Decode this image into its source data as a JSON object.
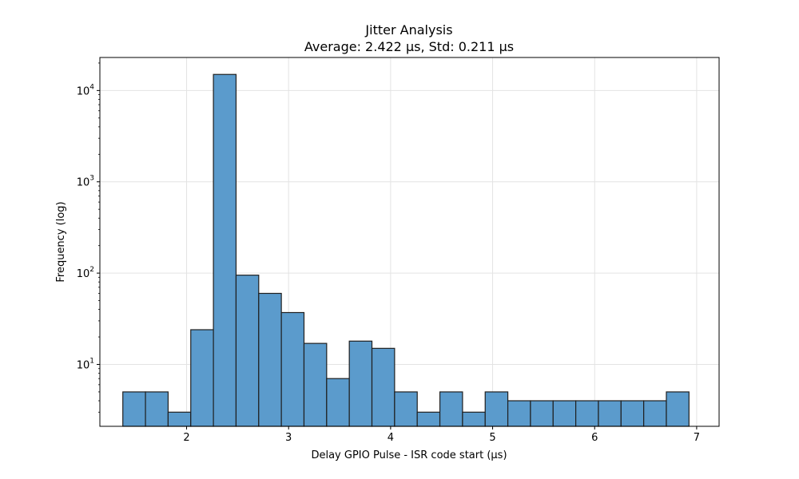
{
  "chart_data": {
    "type": "bar",
    "title": "Jitter Analysis",
    "subtitle": "Average: 2.422 µs, Std: 0.211 µs",
    "xlabel": "Delay GPIO Pulse - ISR code start (µs)",
    "ylabel": "Frequency (log)",
    "yscale": "log",
    "xlim": [
      1.15,
      7.22
    ],
    "ylim": [
      2.1,
      23000
    ],
    "grid": true,
    "bar_color": "#5b9bcc",
    "bar_edge_color": "#1f1f1f",
    "bin_start": 1.375,
    "bin_width": 0.222,
    "bins": [
      {
        "x0": 1.375,
        "x1": 1.597,
        "count": 5
      },
      {
        "x0": 1.597,
        "x1": 1.819,
        "count": 5
      },
      {
        "x0": 1.819,
        "x1": 2.041,
        "count": 3
      },
      {
        "x0": 2.041,
        "x1": 2.263,
        "count": 24
      },
      {
        "x0": 2.263,
        "x1": 2.485,
        "count": 15000
      },
      {
        "x0": 2.485,
        "x1": 2.707,
        "count": 95
      },
      {
        "x0": 2.707,
        "x1": 2.929,
        "count": 60
      },
      {
        "x0": 2.929,
        "x1": 3.151,
        "count": 37
      },
      {
        "x0": 3.151,
        "x1": 3.373,
        "count": 17
      },
      {
        "x0": 3.373,
        "x1": 3.595,
        "count": 7
      },
      {
        "x0": 3.595,
        "x1": 3.817,
        "count": 18
      },
      {
        "x0": 3.817,
        "x1": 4.039,
        "count": 15
      },
      {
        "x0": 4.039,
        "x1": 4.261,
        "count": 5
      },
      {
        "x0": 4.261,
        "x1": 4.483,
        "count": 3
      },
      {
        "x0": 4.483,
        "x1": 4.705,
        "count": 5
      },
      {
        "x0": 4.705,
        "x1": 4.927,
        "count": 3
      },
      {
        "x0": 4.927,
        "x1": 5.149,
        "count": 5
      },
      {
        "x0": 5.149,
        "x1": 5.371,
        "count": 4
      },
      {
        "x0": 5.371,
        "x1": 5.593,
        "count": 4
      },
      {
        "x0": 5.593,
        "x1": 5.815,
        "count": 4
      },
      {
        "x0": 5.815,
        "x1": 6.037,
        "count": 4
      },
      {
        "x0": 6.037,
        "x1": 6.259,
        "count": 4
      },
      {
        "x0": 6.259,
        "x1": 6.481,
        "count": 4
      },
      {
        "x0": 6.481,
        "x1": 6.703,
        "count": 4
      },
      {
        "x0": 6.703,
        "x1": 6.925,
        "count": 5
      }
    ],
    "x_ticks": [
      {
        "value": 2,
        "label": "2"
      },
      {
        "value": 3,
        "label": "3"
      },
      {
        "value": 4,
        "label": "4"
      },
      {
        "value": 5,
        "label": "5"
      },
      {
        "value": 6,
        "label": "6"
      },
      {
        "value": 7,
        "label": "7"
      }
    ],
    "y_ticks": [
      {
        "value": 10,
        "base": "10",
        "exp": "1"
      },
      {
        "value": 100,
        "base": "10",
        "exp": "2"
      },
      {
        "value": 1000,
        "base": "10",
        "exp": "3"
      },
      {
        "value": 10000,
        "base": "10",
        "exp": "4"
      }
    ]
  }
}
